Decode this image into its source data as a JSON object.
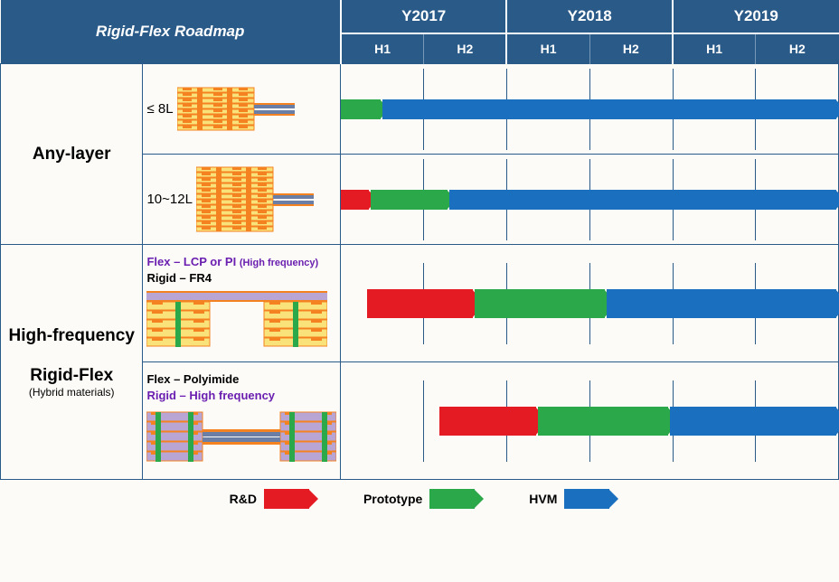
{
  "title": "Rigid-Flex Roadmap",
  "years": [
    "Y2017",
    "Y2018",
    "Y2019"
  ],
  "halves": [
    "H1",
    "H2"
  ],
  "colors": {
    "header_bg": "#2a5a88",
    "border": "#2a5a88",
    "rd": "#e41b23",
    "proto": "#2ba84a",
    "hvm": "#1a6fbf",
    "purple": "#6a1fb0",
    "black": "#000000",
    "layer_yellow": "#f9e27a",
    "copper": "#f58220",
    "via_gray": "#6b7fa6",
    "hf_purple": "#b9a5d4"
  },
  "categories": [
    {
      "name": "Any-layer",
      "rows": [
        {
          "label": "≤ 8L",
          "stackup": "al8",
          "phases": [
            {
              "kind": "proto",
              "start": 0,
              "end": 0.5
            },
            {
              "kind": "hvm",
              "start": 0.5,
              "end": 6
            }
          ]
        },
        {
          "label": "10~12L",
          "stackup": "al12",
          "phases": [
            {
              "kind": "rd",
              "start": 0,
              "end": 0.35
            },
            {
              "kind": "proto",
              "start": 0.35,
              "end": 1.3
            },
            {
              "kind": "hvm",
              "start": 1.3,
              "end": 6
            }
          ]
        }
      ]
    },
    {
      "name": "High-frequency<br><br>Rigid-Flex",
      "sub": "(Hybrid materials)",
      "rows": [
        {
          "materials": [
            {
              "text": "Flex – LCP or PI ",
              "color": "purple"
            },
            {
              "text": "(High frequency)",
              "color": "purple",
              "small": true
            },
            {
              "break": true
            },
            {
              "text": "Rigid – FR4",
              "color": "black"
            }
          ],
          "stackup": "hf1",
          "thick": true,
          "phases": [
            {
              "kind": "rd",
              "start": 0.3,
              "end": 1.6
            },
            {
              "kind": "proto",
              "start": 1.6,
              "end": 3.2
            },
            {
              "kind": "hvm",
              "start": 3.2,
              "end": 6
            }
          ]
        },
        {
          "materials": [
            {
              "text": "Flex – Polyimide",
              "color": "black"
            },
            {
              "break": true
            },
            {
              "text": "Rigid – High frequency",
              "color": "purple"
            }
          ],
          "stackup": "hf2",
          "thick": true,
          "phases": [
            {
              "kind": "rd",
              "start": 1.15,
              "end": 2.35
            },
            {
              "kind": "proto",
              "start": 2.35,
              "end": 3.95
            },
            {
              "kind": "hvm",
              "start": 3.95,
              "end": 6
            }
          ]
        }
      ]
    }
  ],
  "legend": [
    {
      "label": "R&D",
      "kind": "rd"
    },
    {
      "label": "Prototype",
      "kind": "proto"
    },
    {
      "label": "HVM",
      "kind": "hvm"
    }
  ],
  "layout": {
    "col_title_w": 160,
    "col_stack_w": 200,
    "half_w": 94.5,
    "row_h_any": 100,
    "row_h_hf": 130
  }
}
